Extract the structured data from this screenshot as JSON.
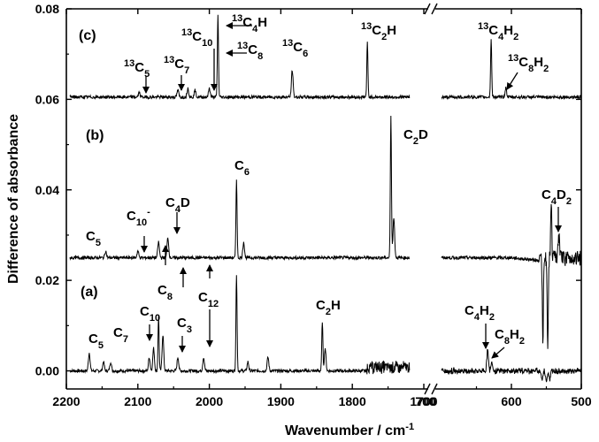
{
  "chart_data": {
    "type": "line",
    "xlabel": "Wavenumber / cm-1",
    "ylabel": "Difference of absorbance",
    "ylim": [
      -0.004,
      0.08
    ],
    "x_axis_break": {
      "between": [
        1700,
        700
      ]
    },
    "xlim_left": [
      2200,
      1700
    ],
    "xlim_right": [
      700,
      500
    ],
    "x_ticks": [
      "2200",
      "2100",
      "2000",
      "1900",
      "1800",
      "1700",
      "600",
      "500"
    ],
    "x_tick_values": [
      2200,
      2100,
      2000,
      1900,
      1800,
      1700,
      600,
      500
    ],
    "extra_tick_label": "700",
    "y_ticks": [
      "0.00",
      "0.02",
      "0.04",
      "0.06",
      "0.08"
    ],
    "y_tick_values": [
      0,
      0.02,
      0.04,
      0.06,
      0.08
    ],
    "grid": false,
    "panels": [
      {
        "label": "(a)",
        "baseline": 0.0,
        "peaks": [
          {
            "x": 2168,
            "y": 0.004
          },
          {
            "x": 2148,
            "y": 0.002
          },
          {
            "x": 2138,
            "y": 0.002
          },
          {
            "x": 2084,
            "y": 0.003
          },
          {
            "x": 2078,
            "y": 0.005
          },
          {
            "x": 2071,
            "y": 0.012
          },
          {
            "x": 2065,
            "y": 0.008
          },
          {
            "x": 2044,
            "y": 0.003
          },
          {
            "x": 2008,
            "y": 0.003
          },
          {
            "x": 1962,
            "y": 0.0215
          },
          {
            "x": 1946,
            "y": 0.002
          },
          {
            "x": 1918,
            "y": 0.003
          },
          {
            "x": 1842,
            "y": 0.011
          },
          {
            "x": 1838,
            "y": 0.005
          },
          {
            "x": 634,
            "y": 0.005
          },
          {
            "x": 628,
            "y": 0.002
          },
          {
            "x": 556,
            "y": -0.002
          },
          {
            "x": 550,
            "y": -0.002
          },
          {
            "x": 545,
            "y": -0.002
          }
        ]
      },
      {
        "label": "(b)",
        "baseline": 0.025,
        "peaks": [
          {
            "x": 2145,
            "y": 0.0265
          },
          {
            "x": 2100,
            "y": 0.0265
          },
          {
            "x": 2071,
            "y": 0.0285
          },
          {
            "x": 2058,
            "y": 0.0295
          },
          {
            "x": 1962,
            "y": 0.0425
          },
          {
            "x": 1952,
            "y": 0.0285
          },
          {
            "x": 1746,
            "y": 0.0565
          },
          {
            "x": 1742,
            "y": 0.034
          },
          {
            "x": 555,
            "y": 0.005
          },
          {
            "x": 548,
            "y": 0.004
          },
          {
            "x": 543,
            "y": 0.0375
          },
          {
            "x": 532,
            "y": 0.0295
          }
        ]
      },
      {
        "label": "(c)",
        "baseline": 0.0605,
        "peaks": [
          {
            "x": 2098,
            "y": 0.0615
          },
          {
            "x": 2044,
            "y": 0.062
          },
          {
            "x": 2030,
            "y": 0.0625
          },
          {
            "x": 2020,
            "y": 0.062
          },
          {
            "x": 2000,
            "y": 0.0625
          },
          {
            "x": 1988,
            "y": 0.0785
          },
          {
            "x": 1884,
            "y": 0.0665
          },
          {
            "x": 1779,
            "y": 0.0725
          },
          {
            "x": 629,
            "y": 0.0735
          },
          {
            "x": 608,
            "y": 0.0625
          }
        ]
      }
    ],
    "annotations": [
      {
        "panel": "a",
        "x": 2168,
        "parts": [
          [
            "C"
          ],
          [
            "5",
            "sub"
          ]
        ]
      },
      {
        "panel": "a",
        "x": 2140,
        "parts": [
          [
            "C"
          ],
          [
            "7",
            "sub"
          ]
        ]
      },
      {
        "panel": "a",
        "x": 2080,
        "parts": [
          [
            "C"
          ],
          [
            "10",
            "sub"
          ]
        ]
      },
      {
        "panel": "a",
        "x": 2068,
        "parts": [
          [
            "C"
          ],
          [
            "8",
            "sub"
          ]
        ]
      },
      {
        "panel": "a",
        "x": 2046,
        "parts": [
          [
            "C"
          ],
          [
            "3",
            "sub"
          ]
        ]
      },
      {
        "panel": "a",
        "x": 2008,
        "parts": [
          [
            "C"
          ],
          [
            "12",
            "sub"
          ]
        ]
      },
      {
        "panel": "a",
        "x": 1840,
        "parts": [
          [
            "C"
          ],
          [
            "2",
            "sub"
          ],
          [
            "H"
          ]
        ]
      },
      {
        "panel": "a",
        "x": 634,
        "parts": [
          [
            "C"
          ],
          [
            "4",
            "sub"
          ],
          [
            "H"
          ],
          [
            "2",
            "sub"
          ]
        ]
      },
      {
        "panel": "a",
        "x": 612,
        "parts": [
          [
            "C"
          ],
          [
            "8",
            "sub"
          ],
          [
            "H"
          ],
          [
            "2",
            "sub"
          ]
        ]
      },
      {
        "panel": "b",
        "x": 2160,
        "parts": [
          [
            "C"
          ],
          [
            "5",
            "sub"
          ]
        ]
      },
      {
        "panel": "b",
        "x": 2100,
        "parts": [
          [
            "C"
          ],
          [
            "10",
            "sub"
          ],
          [
            "-",
            "sup"
          ]
        ]
      },
      {
        "panel": "b",
        "x": 2050,
        "parts": [
          [
            "C"
          ],
          [
            "4",
            "sub"
          ],
          [
            "D"
          ]
        ]
      },
      {
        "panel": "b",
        "x": 1962,
        "parts": [
          [
            "C"
          ],
          [
            "6",
            "sub"
          ]
        ]
      },
      {
        "panel": "b",
        "x": 1735,
        "parts": [
          [
            "C"
          ],
          [
            "2",
            "sub"
          ],
          [
            "D"
          ]
        ]
      },
      {
        "panel": "b",
        "x": 532,
        "parts": [
          [
            "C"
          ],
          [
            "4",
            "sub"
          ],
          [
            "D"
          ],
          [
            "2",
            "sub"
          ]
        ]
      },
      {
        "panel": "c",
        "x": 2098,
        "parts": [
          [
            "13",
            "sup"
          ],
          [
            "C"
          ],
          [
            "5",
            "sub"
          ]
        ]
      },
      {
        "panel": "c",
        "x": 2044,
        "parts": [
          [
            "13",
            "sup"
          ],
          [
            "C"
          ],
          [
            "7",
            "sub"
          ]
        ]
      },
      {
        "panel": "c",
        "x": 2000,
        "parts": [
          [
            "13",
            "sup"
          ],
          [
            "C"
          ],
          [
            "10",
            "sub"
          ]
        ]
      },
      {
        "panel": "c",
        "x": 1988,
        "parts": [
          [
            "13",
            "sup"
          ],
          [
            "C"
          ],
          [
            "4",
            "sub"
          ],
          [
            "H"
          ]
        ]
      },
      {
        "panel": "c",
        "x": 1988,
        "parts": [
          [
            "13",
            "sup"
          ],
          [
            "C"
          ],
          [
            "8",
            "sub"
          ]
        ]
      },
      {
        "panel": "c",
        "x": 1884,
        "parts": [
          [
            "13",
            "sup"
          ],
          [
            "C"
          ],
          [
            "6",
            "sub"
          ]
        ]
      },
      {
        "panel": "c",
        "x": 1779,
        "parts": [
          [
            "13",
            "sup"
          ],
          [
            "C"
          ],
          [
            "2",
            "sub"
          ],
          [
            "H"
          ]
        ]
      },
      {
        "panel": "c",
        "x": 629,
        "parts": [
          [
            "13",
            "sup"
          ],
          [
            "C"
          ],
          [
            "4",
            "sub"
          ],
          [
            "H"
          ],
          [
            "2",
            "sub"
          ]
        ]
      },
      {
        "panel": "c",
        "x": 608,
        "parts": [
          [
            "13",
            "sup"
          ],
          [
            "C"
          ],
          [
            "8",
            "sub"
          ],
          [
            "H"
          ],
          [
            "2",
            "sub"
          ]
        ]
      }
    ]
  },
  "labels": {
    "ylabel": "Difference of absorbance",
    "xlabel_main": "Wavenumber",
    "xlabel_sep": " / ",
    "xlabel_unit": "cm",
    "xlabel_exp": "-1",
    "panel_a": "(a)",
    "panel_b": "(b)",
    "panel_c": "(c)",
    "tick_700": "700"
  }
}
